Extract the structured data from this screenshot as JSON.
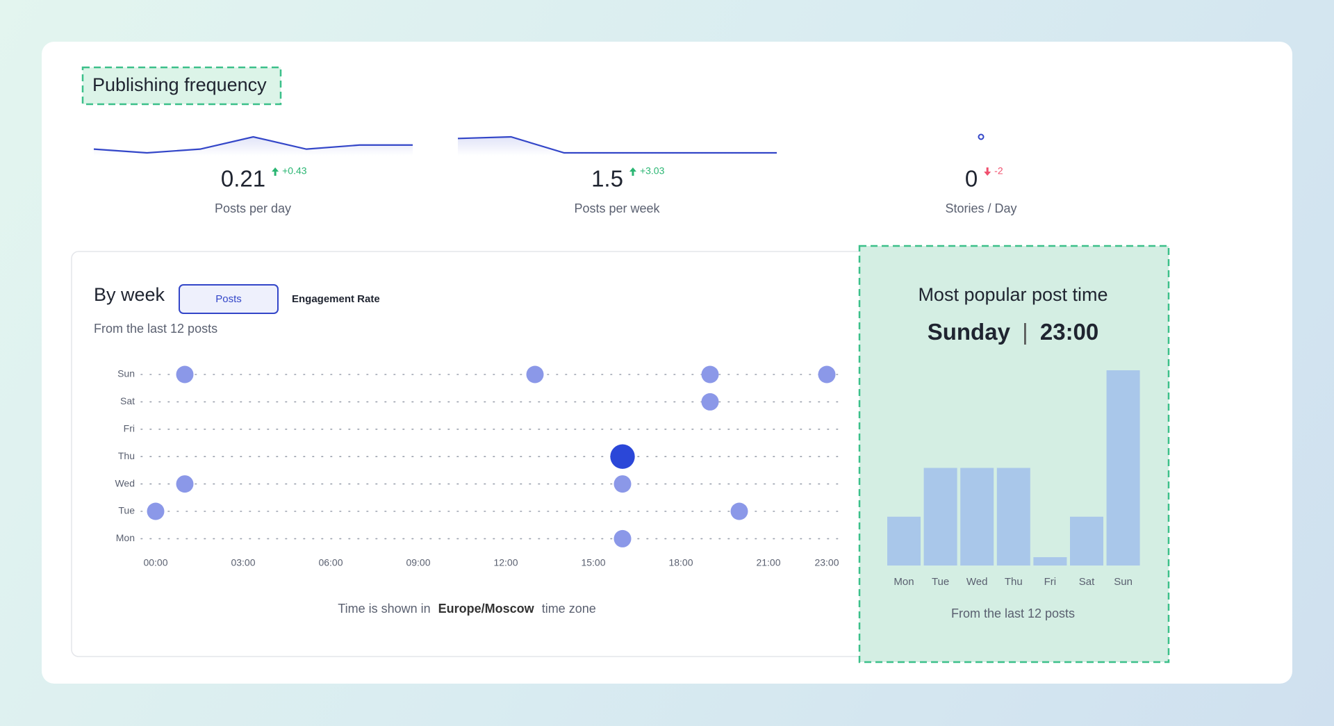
{
  "header": {
    "title": "Publishing frequency"
  },
  "metrics": [
    {
      "value": 0.21,
      "change": "+0.43",
      "trend": "up",
      "label": "Posts per day",
      "sparkline": [
        0.1,
        0,
        0.1,
        0.43,
        0.1,
        0.21,
        0.21
      ]
    },
    {
      "value": 1.5,
      "change": "+3.03",
      "trend": "up",
      "label": "Posts per week",
      "sparkline": [
        2.7,
        3,
        0,
        0,
        0,
        0,
        0
      ]
    },
    {
      "value": 0,
      "change": "-2",
      "trend": "down",
      "label": "Stories / Day",
      "sparkline": [
        0
      ]
    }
  ],
  "by_week": {
    "title": "By week",
    "tabs": [
      "Posts",
      "Engagement Rate"
    ],
    "active_tab": 0,
    "subtitle": "From the last 12 posts",
    "chart": {
      "type": "scatter",
      "categories": [
        "Mon",
        "Tue",
        "Wed",
        "Thu",
        "Fri",
        "Sat",
        "Sun"
      ],
      "xlim": [
        -0.5,
        23.5
      ],
      "xticks": [
        {
          "value": 0,
          "label": "00:00"
        },
        {
          "value": 3,
          "label": "03:00"
        },
        {
          "value": 6,
          "label": "06:00"
        },
        {
          "value": 9,
          "label": "09:00"
        },
        {
          "value": 12,
          "label": "12:00"
        },
        {
          "value": 15,
          "label": "15:00"
        },
        {
          "value": 18,
          "label": "18:00"
        },
        {
          "value": 21,
          "label": "21:00"
        },
        {
          "value": 23,
          "label": "23:00"
        }
      ],
      "color": "#8b98e8",
      "highlight_color": "#2b47d8",
      "points": [
        {
          "day": "Sun",
          "hour": 1,
          "count": 1
        },
        {
          "day": "Sun",
          "hour": 13,
          "count": 1
        },
        {
          "day": "Sun",
          "hour": 19,
          "count": 1
        },
        {
          "day": "Sun",
          "hour": 23,
          "count": 1
        },
        {
          "day": "Sat",
          "hour": 19,
          "count": 1
        },
        {
          "day": "Thu",
          "hour": 16,
          "count": 2
        },
        {
          "day": "Wed",
          "hour": 1,
          "count": 1
        },
        {
          "day": "Wed",
          "hour": 16,
          "count": 1
        },
        {
          "day": "Tue",
          "hour": 0,
          "count": 1
        },
        {
          "day": "Tue",
          "hour": 20,
          "count": 1
        },
        {
          "day": "Mon",
          "hour": 16,
          "count": 1
        }
      ]
    },
    "note": {
      "prefix": "Time is shown in",
      "zone": "Europe/Moscow",
      "suffix": "time zone"
    }
  },
  "popular": {
    "title": "Most popular post time",
    "day": "Sunday",
    "separator": "|",
    "time": "23:00",
    "chart": {
      "type": "bar",
      "categories": [
        "Mon",
        "Tue",
        "Wed",
        "Thu",
        "Fri",
        "Sat",
        "Sun"
      ],
      "values": [
        1,
        2,
        2,
        2,
        0,
        1,
        4
      ],
      "ylim": [
        0,
        4
      ],
      "color": "#a9c7ea"
    },
    "footnote": "From the last 12 posts"
  }
}
